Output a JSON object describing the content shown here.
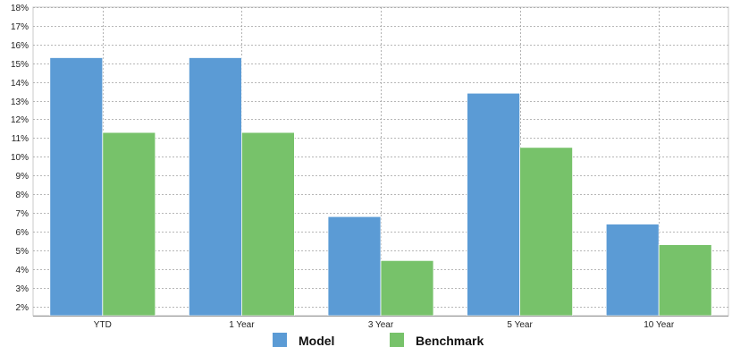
{
  "chart_data": {
    "type": "bar",
    "categories": [
      "YTD",
      "1 Year",
      "3 Year",
      "5 Year",
      "10 Year"
    ],
    "series": [
      {
        "name": "Model",
        "values": [
          15.3,
          15.3,
          6.8,
          13.4,
          6.4
        ],
        "color": "#5b9bd5"
      },
      {
        "name": "Benchmark",
        "values": [
          11.3,
          11.3,
          4.45,
          10.5,
          5.3
        ],
        "color": "#77c26a"
      }
    ],
    "ylim": [
      1.5,
      18
    ],
    "yticks": [
      "2%",
      "3%",
      "4%",
      "5%",
      "6%",
      "7%",
      "8%",
      "9%",
      "10%",
      "11%",
      "12%",
      "13%",
      "14%",
      "15%",
      "16%",
      "17%",
      "18%"
    ],
    "ytick_values": [
      2,
      3,
      4,
      5,
      6,
      7,
      8,
      9,
      10,
      11,
      12,
      13,
      14,
      15,
      16,
      17,
      18
    ],
    "grid": true,
    "legend_position": "bottom-center",
    "grid_color": "#a0a0a0"
  }
}
